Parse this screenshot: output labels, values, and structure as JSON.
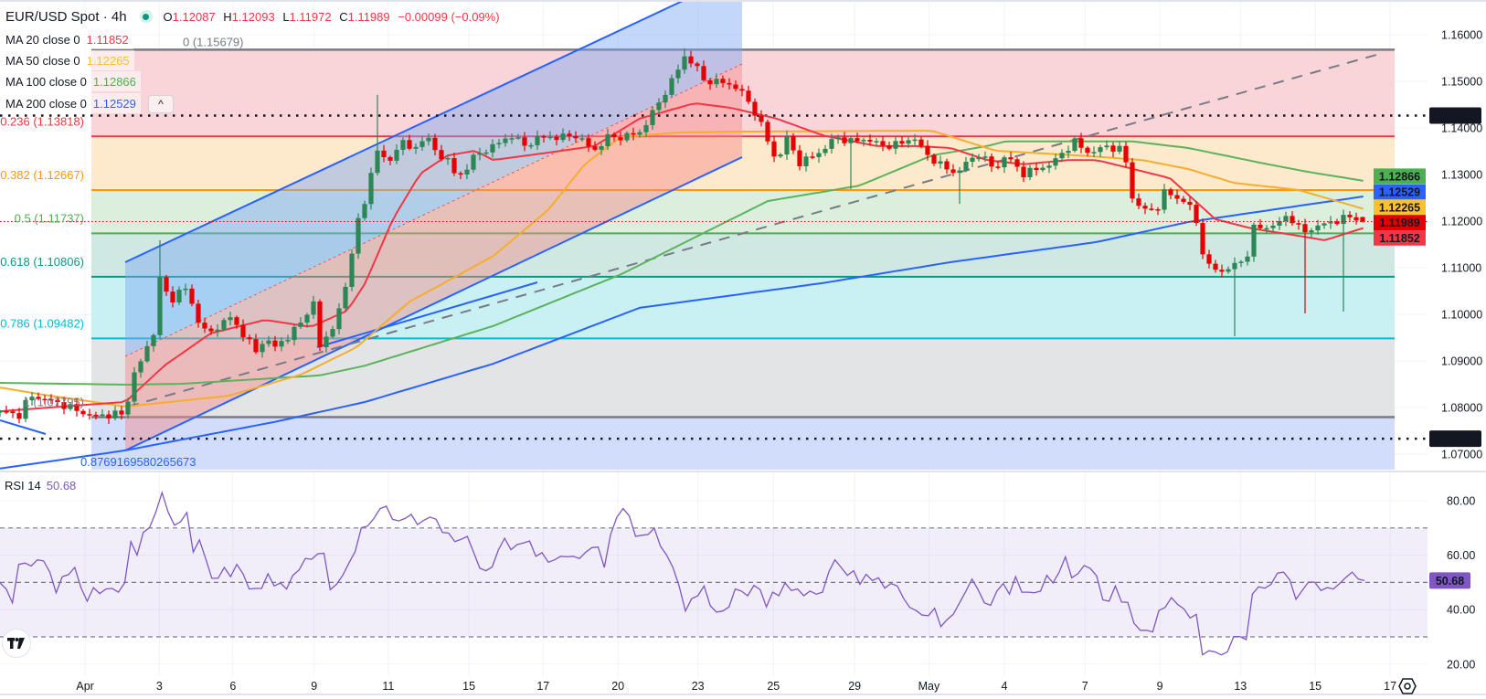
{
  "header": {
    "symbol": "EUR/USD Spot · 4h",
    "ohlc": {
      "o_label": "O",
      "o": "1.12087",
      "h_label": "H",
      "h": "1.12093",
      "l_label": "L",
      "l": "1.11972",
      "c_label": "C",
      "c": "1.11989",
      "change": "−0.00099 (−0.09%)"
    }
  },
  "indicators": [
    {
      "label": "MA 20 close 0",
      "value": "1.11852",
      "color": "#f23645",
      "line_color": "#f23645"
    },
    {
      "label": "MA 50 close 0",
      "value": "1.12265",
      "color": "#f9c02e",
      "line_color": "#f7ad2c"
    },
    {
      "label": "MA 100 close 0",
      "value": "1.12866",
      "color": "#4caf50",
      "line_color": "#5cb25d"
    },
    {
      "label": "MA 200 close 0",
      "value": "1.12529",
      "color": "#2962ff",
      "line_color": "#2962ff"
    }
  ],
  "collapse_button": "^",
  "fib": {
    "levels": [
      {
        "ratio": 0,
        "price": 1.15679,
        "label": "0 (1.15679)",
        "color": "#787b86",
        "fill": "#f9d5d9"
      },
      {
        "ratio": 0.236,
        "price": 1.13818,
        "label": "0.236 (1.13818)",
        "color": "#f23645",
        "fill": "#fde9cc"
      },
      {
        "ratio": 0.382,
        "price": 1.12667,
        "label": "0.382 (1.12667)",
        "color": "#ff9800",
        "fill": "#dcefdc"
      },
      {
        "ratio": 0.5,
        "price": 1.11737,
        "label": "0.5 (1.11737)",
        "color": "#4caf50",
        "fill": "#cfe9e2"
      },
      {
        "ratio": 0.618,
        "price": 1.10806,
        "label": "0.618 (1.10806)",
        "color": "#089981",
        "fill": "#c9f0f3"
      },
      {
        "ratio": 0.786,
        "price": 1.09482,
        "label": "0.786 (1.09482)",
        "color": "#00bcd4",
        "fill": "#e3e4e6"
      },
      {
        "ratio": 1,
        "price": 1.07795,
        "label": "1 (1.07795)",
        "color": "#787b86",
        "fill": "#d1ddfb"
      }
    ],
    "extension_label": "0.8769169580265673"
  },
  "horizontal_lines": [
    {
      "price": 1.14264,
      "label": "1.14264"
    },
    {
      "price": 1.07331,
      "label": "1.07331"
    }
  ],
  "price_axis": {
    "ticks": [
      "1.16000",
      "1.15000",
      "1.14000",
      "1.13000",
      "1.12000",
      "1.11000",
      "1.10000",
      "1.09000",
      "1.08000",
      "1.07000"
    ],
    "markers": [
      {
        "price": 1.12866,
        "label": "1.12866",
        "bg": "#4caf50",
        "fg": "#ffffff"
      },
      {
        "price": 1.12529,
        "label": "1.12529",
        "bg": "#2962ff",
        "fg": "#ffffff"
      },
      {
        "price": 1.12265,
        "label": "1.12265",
        "bg": "#fbc02d",
        "fg": "#131722"
      },
      {
        "price": 1.11989,
        "label": "1.11989",
        "bg": "#e00000",
        "fg": "#ffffff"
      },
      {
        "price": 1.11852,
        "label": "1.11852",
        "bg": "#f23645",
        "fg": "#ffffff"
      }
    ]
  },
  "rsi": {
    "label": "RSI 14",
    "value": "50.68",
    "color": "#7e57c2",
    "ticks": [
      "80.00",
      "60.00",
      "40.00",
      "20.00"
    ],
    "bands": [
      70,
      50,
      30
    ]
  },
  "time_axis": {
    "ticks": [
      {
        "label": "Apr",
        "bar": 13.3
      },
      {
        "label": "3",
        "bar": 24.9
      },
      {
        "label": "6",
        "bar": 36.4
      },
      {
        "label": "9",
        "bar": 49.1
      },
      {
        "label": "11",
        "bar": 60.7
      },
      {
        "label": "15",
        "bar": 73.3
      },
      {
        "label": "17",
        "bar": 84.9
      },
      {
        "label": "20",
        "bar": 96.6
      },
      {
        "label": "23",
        "bar": 109.1
      },
      {
        "label": "25",
        "bar": 120.9
      },
      {
        "label": "29",
        "bar": 133.6
      },
      {
        "label": "May",
        "bar": 145.2
      },
      {
        "label": "4",
        "bar": 157
      },
      {
        "label": "7",
        "bar": 169.6
      },
      {
        "label": "9",
        "bar": 181.3
      },
      {
        "label": "13",
        "bar": 193.9
      },
      {
        "label": "15",
        "bar": 205.6
      },
      {
        "label": "17",
        "bar": 217.3
      }
    ]
  },
  "chart_data": {
    "type": "candlestick",
    "title": "EUR/USD Spot · 4h",
    "xlabel": "",
    "ylabel": "",
    "ylim": [
      1.0665,
      1.1665
    ],
    "rsi_ylim": [
      15,
      85
    ],
    "colors": {
      "up": "#2c8656",
      "down": "#e60000"
    },
    "close_keypoints": [
      [
        0,
        1.0792
      ],
      [
        3.6,
        1.0782
      ],
      [
        4.3,
        1.0827
      ],
      [
        8.6,
        1.0812
      ],
      [
        14.3,
        1.0782
      ],
      [
        19.6,
        1.0787
      ],
      [
        20.7,
        1.0867
      ],
      [
        22.1,
        1.09
      ],
      [
        24.3,
        1.0973
      ],
      [
        25.1,
        1.1086
      ],
      [
        26,
        1.105
      ],
      [
        27.1,
        1.1027
      ],
      [
        28.6,
        1.1067
      ],
      [
        30.7,
        1.0998
      ],
      [
        32.1,
        1.0959
      ],
      [
        34.3,
        1.0973
      ],
      [
        35.7,
        1.0998
      ],
      [
        37.9,
        1.096
      ],
      [
        40,
        1.092
      ],
      [
        41.4,
        1.0949
      ],
      [
        42.9,
        1.0929
      ],
      [
        45.7,
        1.096
      ],
      [
        47.1,
        1.0985
      ],
      [
        49.6,
        1.1037
      ],
      [
        50,
        1.0929
      ],
      [
        51.4,
        1.0959
      ],
      [
        52.9,
        1.1
      ],
      [
        54.3,
        1.1076
      ],
      [
        55.7,
        1.1194
      ],
      [
        56.9,
        1.123
      ],
      [
        58.9,
        1.1361
      ],
      [
        60,
        1.133
      ],
      [
        60.7,
        1.1322
      ],
      [
        62.1,
        1.1361
      ],
      [
        63.1,
        1.1371
      ],
      [
        64.6,
        1.1345
      ],
      [
        65.7,
        1.138
      ],
      [
        67.1,
        1.1371
      ],
      [
        68.6,
        1.1341
      ],
      [
        70,
        1.1331
      ],
      [
        71.4,
        1.1292
      ],
      [
        72.1,
        1.13
      ],
      [
        74.3,
        1.1341
      ],
      [
        77.1,
        1.1361
      ],
      [
        80,
        1.1384
      ],
      [
        82.1,
        1.1361
      ],
      [
        84.3,
        1.138
      ],
      [
        87.1,
        1.138
      ],
      [
        90,
        1.1384
      ],
      [
        92.9,
        1.1351
      ],
      [
        95,
        1.138
      ],
      [
        97.1,
        1.138
      ],
      [
        100,
        1.139
      ],
      [
        102.6,
        1.1445
      ],
      [
        105.4,
        1.151
      ],
      [
        107,
        1.1553
      ],
      [
        108.6,
        1.1537
      ],
      [
        110,
        1.1502
      ],
      [
        112.9,
        1.1498
      ],
      [
        115,
        1.1488
      ],
      [
        116.4,
        1.1469
      ],
      [
        118.6,
        1.142
      ],
      [
        121.4,
        1.1325
      ],
      [
        122.9,
        1.138
      ],
      [
        125,
        1.1325
      ],
      [
        127.9,
        1.1345
      ],
      [
        130.7,
        1.138
      ],
      [
        132.9,
        1.1371
      ],
      [
        135.7,
        1.1376
      ],
      [
        137.9,
        1.1361
      ],
      [
        140.7,
        1.1366
      ],
      [
        142.9,
        1.138
      ],
      [
        144.6,
        1.1345
      ],
      [
        147.1,
        1.132
      ],
      [
        149.3,
        1.1302
      ],
      [
        150.7,
        1.132
      ],
      [
        152.9,
        1.1345
      ],
      [
        155.7,
        1.131
      ],
      [
        157.1,
        1.1341
      ],
      [
        160,
        1.1302
      ],
      [
        164.3,
        1.1322
      ],
      [
        167.9,
        1.1371
      ],
      [
        170.3,
        1.1345
      ],
      [
        172.9,
        1.1361
      ],
      [
        175.7,
        1.1351
      ],
      [
        177.1,
        1.1243
      ],
      [
        178.9,
        1.1224
      ],
      [
        180.7,
        1.1224
      ],
      [
        182.1,
        1.1263
      ],
      [
        183.7,
        1.1253
      ],
      [
        186.4,
        1.1229
      ],
      [
        188.6,
        1.1102
      ],
      [
        191.6,
        1.1092
      ],
      [
        193.7,
        1.1116
      ],
      [
        194.6,
        1.1102
      ],
      [
        195.7,
        1.1184
      ],
      [
        199.3,
        1.119
      ],
      [
        201.4,
        1.1214
      ],
      [
        203.6,
        1.1175
      ],
      [
        206.1,
        1.119
      ],
      [
        208.6,
        1.12
      ],
      [
        211.1,
        1.121
      ],
      [
        213.1,
        1.11989
      ]
    ],
    "last_candle": {
      "open": 1.12087,
      "high": 1.12093,
      "low": 1.11972,
      "close": 1.11989
    },
    "wick_extremes": [
      {
        "bar": 25,
        "high": 1.1159
      },
      {
        "bar": 59,
        "high": 1.1471
      },
      {
        "bar": 107,
        "high": 1.1571
      },
      {
        "bar": 133,
        "low": 1.1269
      },
      {
        "bar": 150,
        "low": 1.1237
      },
      {
        "bar": 193,
        "low": 1.0953
      },
      {
        "bar": 204,
        "low": 1.1002
      },
      {
        "bar": 210,
        "low": 1.1006
      }
    ],
    "ma20": [
      [
        0,
        1.0792
      ],
      [
        19.6,
        1.0812
      ],
      [
        25.7,
        1.089
      ],
      [
        32.9,
        1.0959
      ],
      [
        41.4,
        1.0988
      ],
      [
        48.6,
        1.0973
      ],
      [
        54.3,
        1.1008
      ],
      [
        57.1,
        1.1067
      ],
      [
        61.4,
        1.1204
      ],
      [
        65.7,
        1.1302
      ],
      [
        70,
        1.1341
      ],
      [
        74.3,
        1.1351
      ],
      [
        77.1,
        1.1331
      ],
      [
        85.7,
        1.1347
      ],
      [
        92.9,
        1.1361
      ],
      [
        100,
        1.142
      ],
      [
        108.6,
        1.1453
      ],
      [
        114.3,
        1.1443
      ],
      [
        121.4,
        1.142
      ],
      [
        128.6,
        1.1384
      ],
      [
        137.1,
        1.1361
      ],
      [
        142.9,
        1.1361
      ],
      [
        148.6,
        1.1357
      ],
      [
        154.3,
        1.1331
      ],
      [
        160,
        1.1322
      ],
      [
        167.1,
        1.1331
      ],
      [
        171.4,
        1.1331
      ],
      [
        177.1,
        1.1312
      ],
      [
        182.9,
        1.1292
      ],
      [
        190,
        1.1204
      ],
      [
        195.7,
        1.1184
      ],
      [
        200,
        1.1175
      ],
      [
        207.1,
        1.1159
      ],
      [
        213.1,
        1.11852
      ]
    ],
    "ma50": [
      [
        0,
        1.0843
      ],
      [
        7,
        1.0827
      ],
      [
        19.6,
        1.0802
      ],
      [
        35.7,
        1.0825
      ],
      [
        47.1,
        1.0871
      ],
      [
        55.7,
        1.0929
      ],
      [
        64,
        1.1027
      ],
      [
        77.1,
        1.1125
      ],
      [
        85.7,
        1.1224
      ],
      [
        91.4,
        1.1322
      ],
      [
        97,
        1.138
      ],
      [
        105.7,
        1.139
      ],
      [
        114.3,
        1.1392
      ],
      [
        145.7,
        1.1394
      ],
      [
        155.7,
        1.1351
      ],
      [
        168.6,
        1.1341
      ],
      [
        178.6,
        1.1331
      ],
      [
        185.7,
        1.1312
      ],
      [
        192.9,
        1.1282
      ],
      [
        202.9,
        1.1267
      ],
      [
        213.1,
        1.12265
      ]
    ],
    "ma100": [
      [
        0,
        1.0853
      ],
      [
        19.6,
        1.0849
      ],
      [
        28.6,
        1.0851
      ],
      [
        50,
        1.0869
      ],
      [
        57.1,
        1.089
      ],
      [
        77.1,
        1.0975
      ],
      [
        97.1,
        1.1086
      ],
      [
        120,
        1.1243
      ],
      [
        134.3,
        1.1276
      ],
      [
        145.7,
        1.1341
      ],
      [
        154.3,
        1.1361
      ],
      [
        157.1,
        1.1371
      ],
      [
        177.1,
        1.1371
      ],
      [
        185.7,
        1.1357
      ],
      [
        197.1,
        1.1325
      ],
      [
        204.3,
        1.1306
      ],
      [
        213.1,
        1.12866
      ]
    ],
    "ma200": [
      [
        0,
        1.0669
      ],
      [
        19.6,
        1.0708
      ],
      [
        42.9,
        1.0769
      ],
      [
        57.1,
        1.0812
      ],
      [
        77.1,
        1.0894
      ],
      [
        100,
        1.1014
      ],
      [
        128.6,
        1.1067
      ],
      [
        148.6,
        1.1112
      ],
      [
        171.4,
        1.1155
      ],
      [
        185.7,
        1.1198
      ],
      [
        213.1,
        1.12529
      ]
    ],
    "rsi_values": [
      49.8,
      47.6,
      42.5,
      56.6,
      57.1,
      56,
      58.3,
      57.9,
      53.8,
      46.2,
      52.1,
      52.9,
      55.5,
      48.1,
      43.1,
      48.1,
      45.9,
      47.6,
      47.8,
      46.4,
      49.8,
      65,
      60,
      68.4,
      70.1,
      75.7,
      83,
      75.7,
      71,
      72.3,
      75.7,
      61.1,
      65.6,
      58.8,
      51.5,
      51.5,
      55.5,
      52.1,
      56.6,
      53.2,
      47.6,
      47.8,
      47.8,
      53.2,
      48.7,
      49.8,
      47.6,
      52.6,
      54.6,
      58.8,
      58.5,
      60.5,
      60.7,
      47.3,
      49.3,
      52.6,
      57.1,
      61.3,
      70.1,
      70.7,
      73.5,
      77.1,
      78,
      73.2,
      72.6,
      73.5,
      75,
      71.2,
      72.8,
      74,
      73.2,
      68.4,
      68.1,
      65,
      65.8,
      66.9,
      61.1,
      55.2,
      54.3,
      55.7,
      62,
      66.2,
      62,
      63.9,
      64.5,
      65.2,
      59.6,
      60.9,
      57.4,
      58.3,
      59.6,
      59.4,
      59.6,
      58.8,
      61.1,
      62.8,
      63,
      55.5,
      67.6,
      74,
      77.1,
      74.4,
      66.9,
      67.3,
      67.6,
      69.9,
      63.3,
      60,
      55.5,
      48.7,
      39.5,
      44,
      45.1,
      48.7,
      41.4,
      39.1,
      39.5,
      41,
      47.6,
      46.8,
      45.1,
      48.9,
      47.3,
      41,
      46.4,
      45.1,
      49.8,
      47,
      47.6,
      45.1,
      46.8,
      45.7,
      46.4,
      53.8,
      58.3,
      55.5,
      52.6,
      54.3,
      49.3,
      53,
      50.7,
      51.7,
      47.9,
      49.6,
      48.7,
      44.2,
      40.8,
      39.7,
      38,
      37.8,
      40.5,
      33.8,
      36.3,
      38.3,
      42.5,
      46.7,
      51.2,
      47.2,
      42.5,
      41.6,
      46.8,
      49.6,
      45.7,
      52.1,
      46.4,
      46.4,
      46.2,
      46.8,
      52.6,
      49.8,
      53.8,
      59.4,
      51.7,
      53.2,
      56.2,
      55.1,
      52.4,
      43.6,
      43.1,
      48.7,
      42.8,
      42.7,
      35,
      32.4,
      32.4,
      31.8,
      39.7,
      40.8,
      44.4,
      41.9,
      40.3,
      36.9,
      38.3,
      23.4,
      24.9,
      24.5,
      23.4,
      24.5,
      30.1,
      30.1,
      29,
      45.7,
      48.4,
      47.9,
      49.3,
      53.4,
      53.8,
      50.9,
      43.8,
      47,
      50.1,
      50.1,
      47,
      48.1,
      47.6,
      49.6,
      51.8,
      53.8,
      51.2,
      50.68
    ]
  }
}
